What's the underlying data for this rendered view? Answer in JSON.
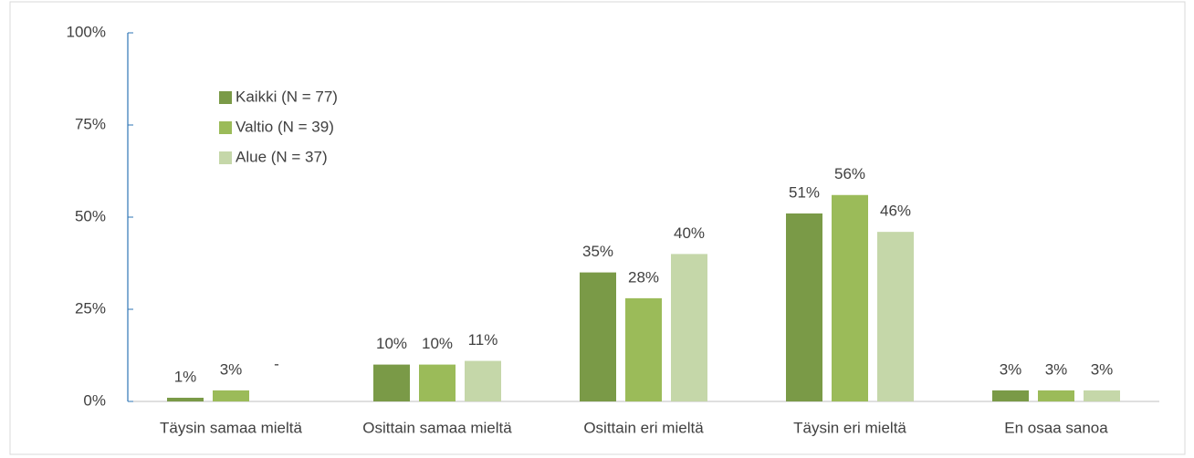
{
  "chart_data": {
    "type": "bar",
    "categories": [
      "Täysin samaa mieltä",
      "Osittain samaa mieltä",
      "Osittain eri mieltä",
      "Täysin eri mieltä",
      "En osaa sanoa"
    ],
    "series": [
      {
        "name": "Kaikki (N = 77)",
        "color": "#7a9a47",
        "values": [
          1,
          10,
          35,
          51,
          3
        ],
        "value_labels": [
          "1%",
          "10%",
          "35%",
          "51%",
          "3%"
        ]
      },
      {
        "name": "Valtio (N = 39)",
        "color": "#9bbb59",
        "values": [
          3,
          10,
          28,
          56,
          3
        ],
        "value_labels": [
          "3%",
          "10%",
          "28%",
          "56%",
          "3%"
        ]
      },
      {
        "name": "Alue (N = 37)",
        "color": "#c5d7a9",
        "values": [
          null,
          11,
          40,
          46,
          3
        ],
        "value_labels": [
          "-",
          "11%",
          "40%",
          "46%",
          "3%"
        ]
      }
    ],
    "ylim": [
      0,
      100
    ],
    "yticks": [
      {
        "value": 0,
        "label": "0%"
      },
      {
        "value": 25,
        "label": "25%"
      },
      {
        "value": 50,
        "label": "50%"
      },
      {
        "value": 75,
        "label": "75%"
      },
      {
        "value": 100,
        "label": "100%"
      }
    ],
    "grid": false,
    "legend": "upper left"
  }
}
